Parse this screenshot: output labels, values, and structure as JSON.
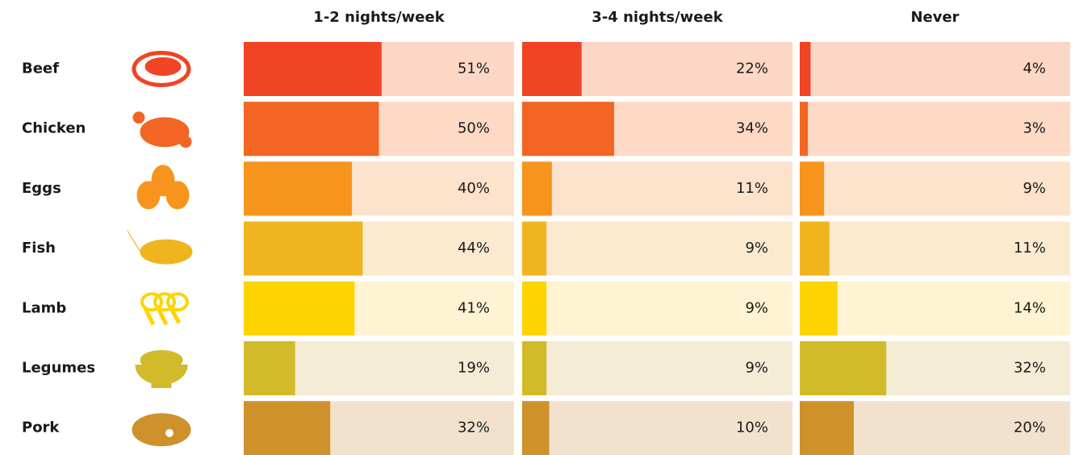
{
  "chart_data": {
    "type": "bar",
    "categories": [
      "Beef",
      "Chicken",
      "Eggs",
      "Fish",
      "Lamb",
      "Legumes",
      "Pork"
    ],
    "colors": [
      "#f04424",
      "#f26522",
      "#f7941d",
      "#f0b41e",
      "#fdd400",
      "#d1bb2a",
      "#cf912b"
    ],
    "background_colors": [
      "#fdd7c5",
      "#fdd9c6",
      "#fde2cc",
      "#fbead0",
      "#fff3d3",
      "#f4ecd4",
      "#f2e2cd"
    ],
    "xlim": [
      0,
      100
    ],
    "series": [
      {
        "name": "1-2 nights/week",
        "values": [
          51,
          50,
          40,
          44,
          41,
          19,
          32
        ],
        "value_labels": [
          "51%",
          "50%",
          "40%",
          "44%",
          "41%",
          "19%",
          "32%"
        ]
      },
      {
        "name": "3-4 nights/week",
        "values": [
          22,
          34,
          11,
          9,
          9,
          9,
          10
        ],
        "value_labels": [
          "22%",
          "34%",
          "11%",
          "9%",
          "9%",
          "9%",
          "10%"
        ]
      },
      {
        "name": "Never",
        "values": [
          4,
          3,
          9,
          11,
          14,
          32,
          20
        ],
        "value_labels": [
          "4%",
          "3%",
          "9%",
          "11%",
          "14%",
          "32%",
          "20%"
        ]
      }
    ]
  }
}
